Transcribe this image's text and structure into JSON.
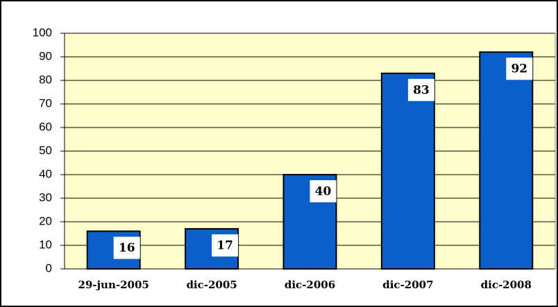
{
  "chart_data": {
    "type": "bar",
    "categories": [
      "29-jun-2005",
      "dic-2005",
      "dic-2006",
      "dic-2007",
      "dic-2008"
    ],
    "values": [
      16,
      17,
      40,
      83,
      92
    ],
    "color": "#0b5fc9",
    "ylim": [
      0,
      100
    ],
    "yticks": [
      0,
      10,
      20,
      30,
      40,
      50,
      60,
      70,
      80,
      90,
      100
    ],
    "grid": true
  }
}
